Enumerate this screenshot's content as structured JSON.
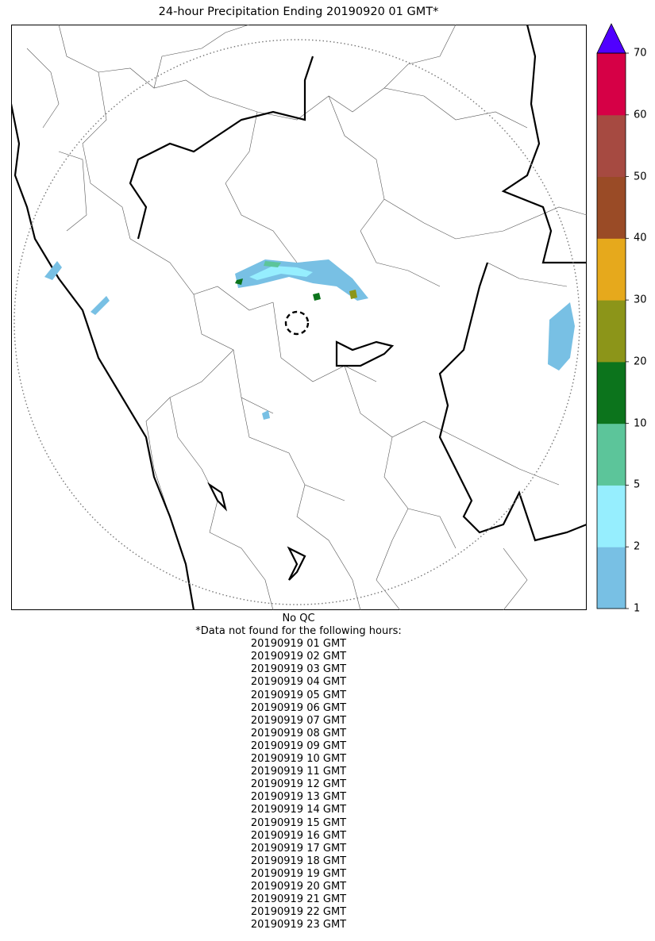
{
  "title": "24-hour Precipitation Ending 20190920 01 GMT*",
  "colorbar": {
    "ticks": [
      "1",
      "2",
      "5",
      "10",
      "20",
      "30",
      "40",
      "50",
      "60",
      "70"
    ],
    "colors": [
      "#78c0e4",
      "#96eefe",
      "#5cc59a",
      "#0c741c",
      "#8c9519",
      "#e6a91c",
      "#9a4b26",
      "#a64a41",
      "#d60046"
    ],
    "extend_color": "#5000ff"
  },
  "footer": {
    "qc_note": "No QC",
    "missing_header": "*Data not found for the following hours:",
    "missing_hours": [
      "20190919 01 GMT",
      "20190919 02 GMT",
      "20190919 03 GMT",
      "20190919 04 GMT",
      "20190919 05 GMT",
      "20190919 06 GMT",
      "20190919 07 GMT",
      "20190919 08 GMT",
      "20190919 09 GMT",
      "20190919 10 GMT",
      "20190919 11 GMT",
      "20190919 12 GMT",
      "20190919 13 GMT",
      "20190919 14 GMT",
      "20190919 15 GMT",
      "20190919 16 GMT",
      "20190919 17 GMT",
      "20190919 18 GMT",
      "20190919 19 GMT",
      "20190919 20 GMT",
      "20190919 21 GMT",
      "20190919 22 GMT",
      "20190919 23 GMT"
    ]
  }
}
